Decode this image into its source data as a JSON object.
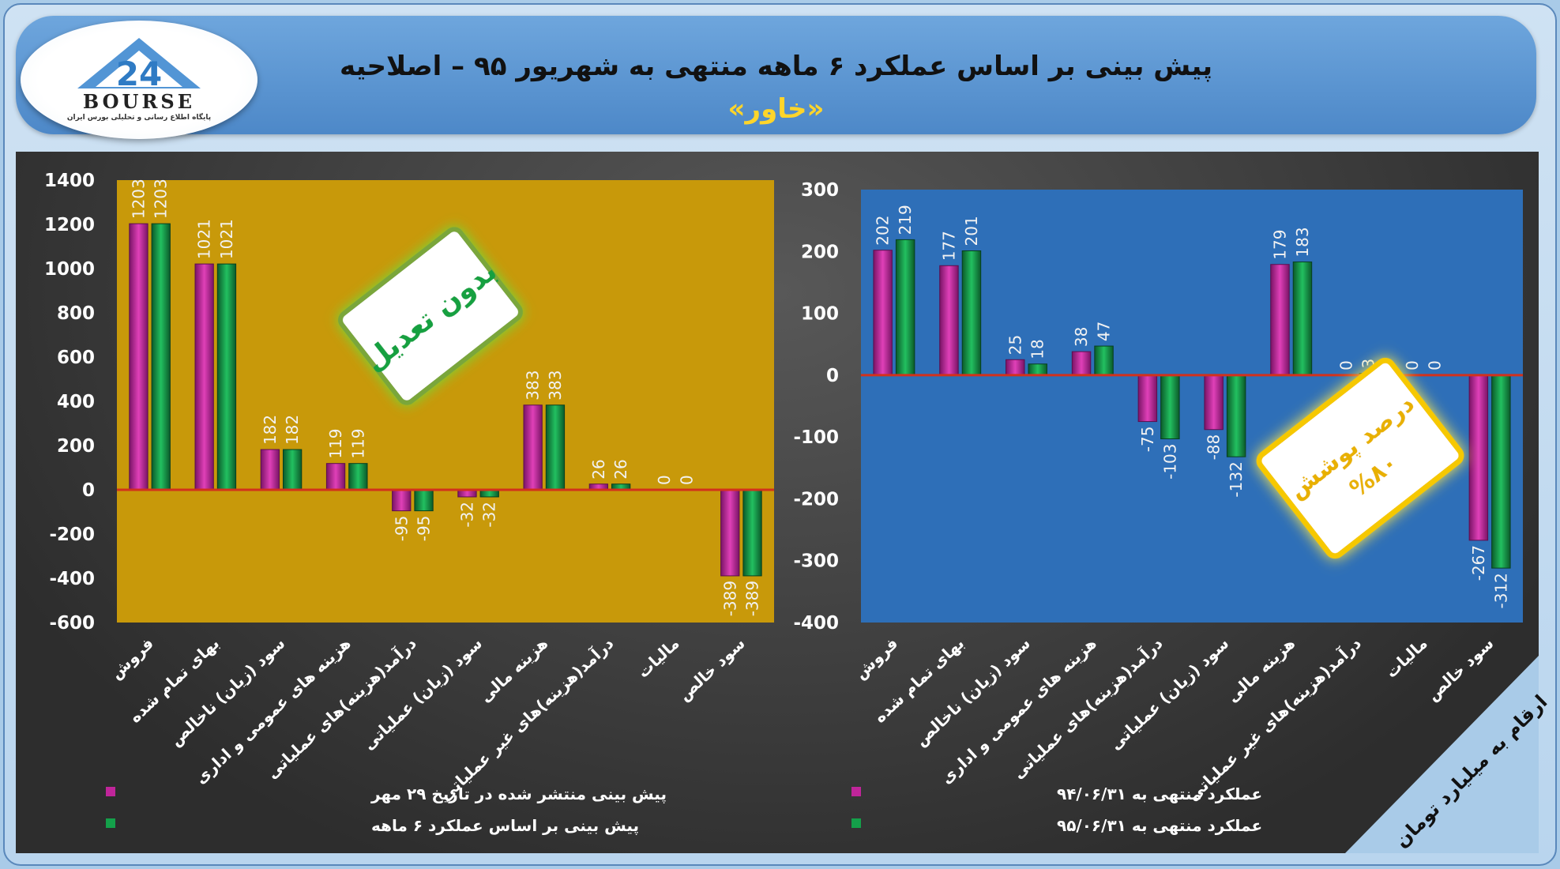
{
  "header": {
    "title": "پیش بینی بر اساس عملکرد ۶ ماهه منتهی به شهریور ۹۵ – اصلاحیه",
    "subtitle": "«خاور»"
  },
  "logo": {
    "word": "BOURSE",
    "number": "24",
    "tagline": "پایگاه اطلاع رسانی و تحلیلی بورس ایران"
  },
  "badges": {
    "left": "بدون تعدیل",
    "right_line1": "درصد پوشش",
    "right_line2": "%۸۰"
  },
  "units_note": "ارقام به میلیارد تومان",
  "colors": {
    "series1": "#c0259a",
    "series2": "#14a04a",
    "left_bg": "#c8990a",
    "right_bg": "#2e6fb8",
    "zero_line": "#d2311c"
  },
  "chart_data": [
    {
      "type": "bar",
      "categories": [
        "فروش",
        "بهای تمام شده",
        "سود (زیان) ناخالص",
        "هزینه های عمومی و اداری",
        "درآمد(هزینه)های عملیاتی",
        "سود (زیان) عملیاتی",
        "هزینه مالی",
        "درآمد(هزینه)های غیر عملیاتی",
        "مالیات",
        "سود خالص"
      ],
      "series": [
        {
          "name": "پیش بینی منتشر شده در تاریخ ۲۹ مهر",
          "values": [
            1203,
            1021,
            182,
            119,
            -95,
            -32,
            383,
            26,
            0,
            -389
          ]
        },
        {
          "name": "پیش بینی بر اساس عملکرد ۶ ماهه",
          "values": [
            1203,
            1021,
            182,
            119,
            -95,
            -32,
            383,
            26,
            0,
            -389
          ]
        }
      ],
      "ylim": [
        -600,
        1400
      ],
      "yticks": [
        1400,
        1200,
        1000,
        800,
        600,
        400,
        200,
        0,
        -200,
        -400,
        -600
      ],
      "grid": false,
      "legend": "bottom"
    },
    {
      "type": "bar",
      "categories": [
        "فروش",
        "بهای تمام شده",
        "سود (زیان) ناخالص",
        "هزینه های عمومی و اداری",
        "درآمد(هزینه)های عملیاتی",
        "سود (زیان) عملیاتی",
        "هزینه مالی",
        "درآمد(هزینه)های غیر عملیاتی",
        "مالیات",
        "سود خالص"
      ],
      "series": [
        {
          "name": "عملکرد منتهی به ۹۴/۰۶/۳۱",
          "values": [
            202,
            177,
            25,
            38,
            -75,
            -88,
            179,
            0,
            0,
            -267
          ]
        },
        {
          "name": "عملکرد منتهی به ۹۵/۰۶/۳۱",
          "values": [
            219,
            201,
            18,
            47,
            -103,
            -132,
            183,
            3,
            0,
            -312
          ]
        }
      ],
      "ylim": [
        -400,
        300
      ],
      "yticks": [
        300,
        200,
        100,
        0,
        -100,
        -200,
        -300,
        -400
      ],
      "grid": false,
      "legend": "bottom"
    }
  ]
}
